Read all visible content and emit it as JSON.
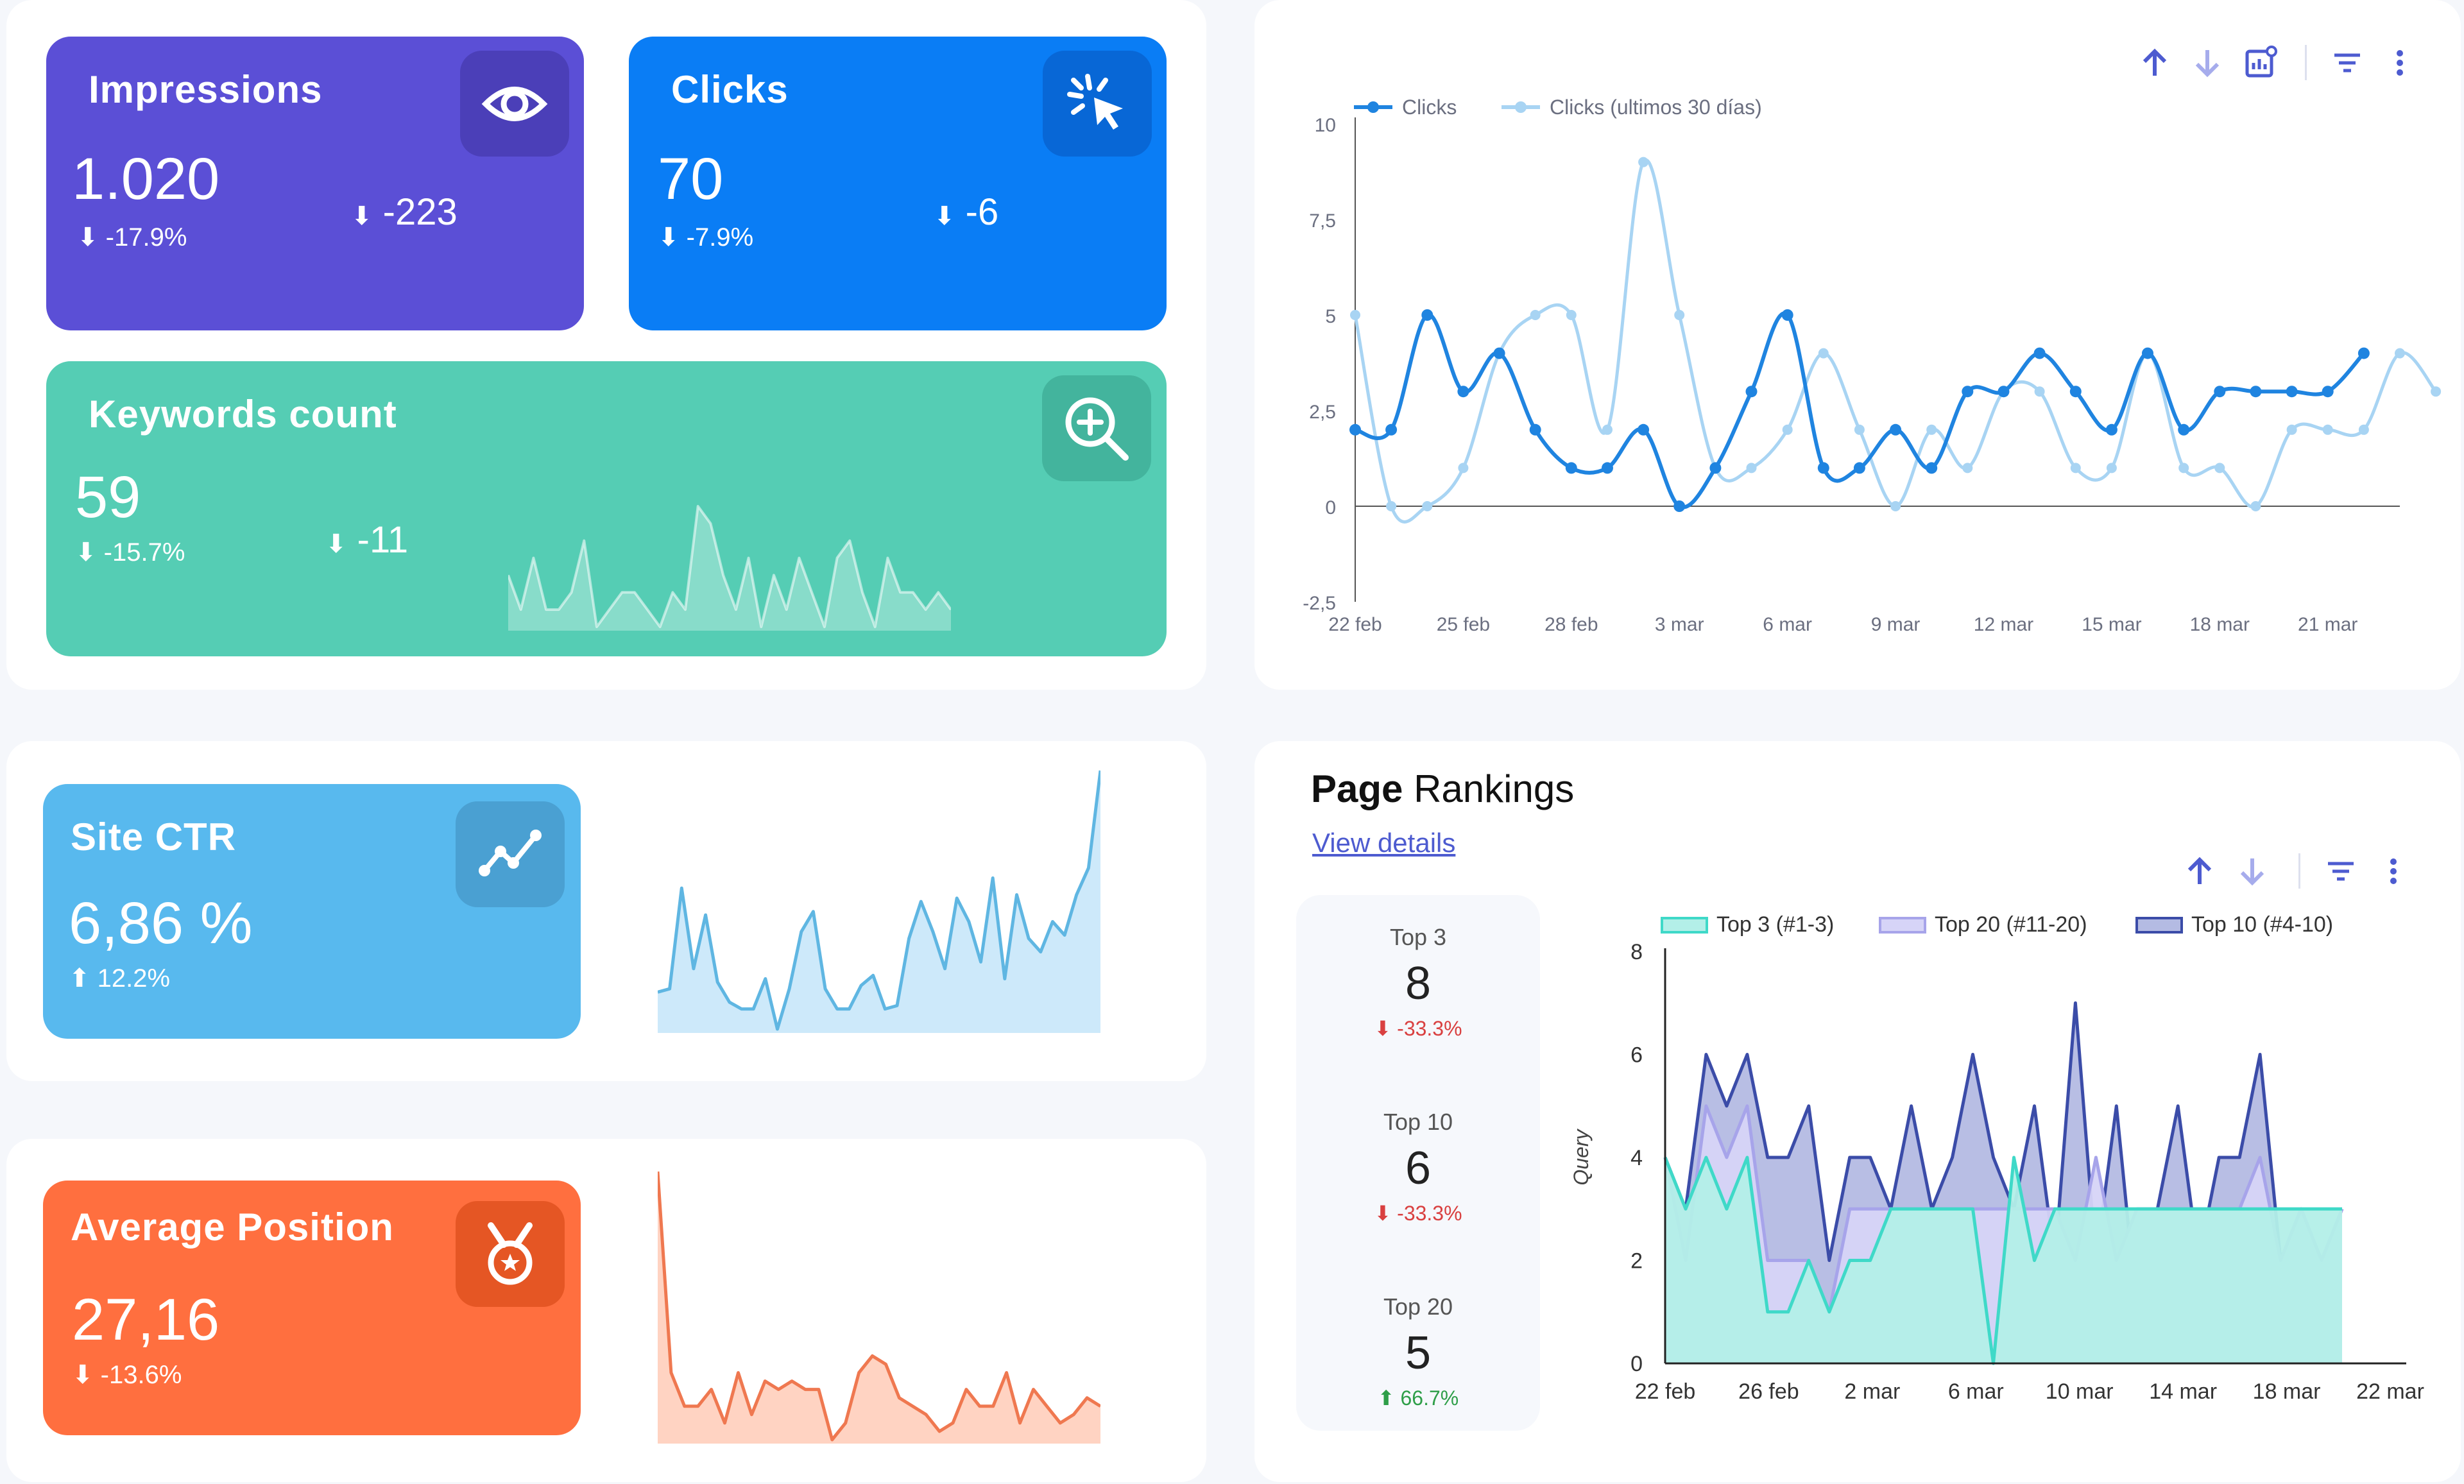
{
  "colors": {
    "impressions": "#5b4fd6",
    "clicks": "#0a7df5",
    "keywords": "#55cdb4",
    "ctr": "#58b9ee",
    "position": "#ff6f3f",
    "line_dark": "#1f84e0",
    "line_light": "#a8d4f3",
    "top3": "#3fd9c8",
    "top10": "#3b4ca8",
    "top20": "#a7a4ea",
    "neg": "#d94040",
    "pos": "#2e9e48"
  },
  "impressions": {
    "title": "Impressions",
    "value": "1.020",
    "pct": "-17.9%",
    "delta": "-223",
    "icon": "eye-icon"
  },
  "clicks": {
    "title": "Clicks",
    "value": "70",
    "pct": "-7.9%",
    "delta": "-6",
    "icon": "cursor-click-icon"
  },
  "keywords": {
    "title": "Keywords count",
    "value": "59",
    "pct": "-15.7%",
    "delta": "-11",
    "icon": "zoom-in-icon",
    "sparkline": [
      5,
      3,
      6,
      3,
      3,
      4,
      7,
      2,
      3,
      4,
      4,
      3,
      2,
      4,
      3,
      9,
      8,
      5,
      3,
      6,
      2,
      5,
      3,
      6,
      4,
      2,
      6,
      7,
      4,
      2,
      6,
      4,
      4,
      3,
      4,
      3
    ]
  },
  "ctr": {
    "title": "Site CTR",
    "value": "6,86 %",
    "pct": "12.2%",
    "icon": "trend-line-icon",
    "sparkline": [
      3.1,
      3.2,
      6.2,
      3.8,
      5.4,
      3.4,
      2.8,
      2.6,
      2.6,
      3.5,
      2.0,
      3.2,
      4.9,
      5.5,
      3.2,
      2.6,
      2.6,
      3.3,
      3.6,
      2.6,
      2.7,
      4.7,
      5.8,
      4.9,
      3.8,
      5.9,
      5.2,
      4.0,
      6.5,
      3.5,
      6.0,
      4.7,
      4.3,
      5.2,
      4.8,
      6.0,
      6.8,
      9.7
    ]
  },
  "position": {
    "title": "Average Position",
    "value": "27,16",
    "pct": "-13.6%",
    "icon": "medal-icon",
    "sparkline": [
      52,
      28,
      24,
      24,
      26,
      22,
      28,
      23,
      27,
      26,
      27,
      26,
      26,
      20,
      22,
      28,
      30,
      29,
      25,
      24,
      23,
      21,
      22,
      26,
      24,
      24,
      28,
      22,
      26,
      24,
      22,
      23,
      25,
      24
    ]
  },
  "clicks_chart": {
    "type": "line",
    "legend": [
      "Clicks",
      "Clicks (ultimos 30 días)"
    ],
    "xticks": [
      "22 feb",
      "25 feb",
      "28 feb",
      "3 mar",
      "6 mar",
      "9 mar",
      "12 mar",
      "15 mar",
      "18 mar",
      "21 mar"
    ],
    "yticks": [
      "10",
      "7,5",
      "5",
      "2,5",
      "0",
      "-2,5"
    ],
    "ylim": [
      -2.5,
      10
    ],
    "series": [
      {
        "name": "Clicks",
        "values": [
          2,
          2,
          5,
          3,
          4,
          2,
          1,
          1,
          2,
          0,
          1,
          3,
          5,
          1,
          1,
          2,
          1,
          3,
          3,
          4,
          3,
          2,
          4,
          2,
          3,
          3,
          3,
          3,
          4
        ]
      },
      {
        "name": "Clicks (ultimos 30 días)",
        "values": [
          5,
          0,
          0,
          1,
          4,
          5,
          5,
          2,
          9,
          5,
          1,
          1,
          2,
          4,
          2,
          0,
          2,
          1,
          3,
          3,
          1,
          1,
          4,
          1,
          1,
          0,
          2,
          2,
          2,
          4,
          3
        ]
      }
    ]
  },
  "rankings": {
    "title_bold": "Page",
    "title_rest": " Rankings",
    "link": "View details",
    "kpis": [
      {
        "label": "Top 3",
        "value": "8",
        "change": "-33.3%",
        "dir": "down"
      },
      {
        "label": "Top 10",
        "value": "6",
        "change": "-33.3%",
        "dir": "down"
      },
      {
        "label": "Top 20",
        "value": "5",
        "change": "66.7%",
        "dir": "up"
      }
    ],
    "chart_data": {
      "type": "area",
      "legend": [
        "Top 3 (#1-3)",
        "Top 20 (#11-20)",
        "Top 10 (#4-10)"
      ],
      "ylabel": "Query",
      "xticks": [
        "22 feb",
        "26 feb",
        "2 mar",
        "6 mar",
        "10 mar",
        "14 mar",
        "18 mar",
        "22 mar"
      ],
      "yticks": [
        "8",
        "6",
        "4",
        "2",
        "0"
      ],
      "ylim": [
        0,
        8
      ],
      "series": [
        {
          "name": "Top 3 (#1-3)",
          "values": [
            4,
            3,
            4,
            3,
            4,
            1,
            1,
            2,
            1,
            2,
            2,
            3,
            3,
            3,
            3,
            3,
            0,
            4,
            2,
            3,
            3,
            3,
            3,
            3,
            3,
            3,
            3,
            3,
            3,
            3,
            3,
            3,
            3,
            3
          ]
        },
        {
          "name": "Top 20 (#11-20)",
          "values": [
            4,
            2,
            5,
            4,
            5,
            2,
            2,
            2,
            1,
            3,
            3,
            3,
            3,
            3,
            3,
            3,
            3,
            3,
            3,
            3,
            2,
            4,
            2,
            3,
            3,
            3,
            3,
            3,
            3,
            4,
            2,
            3,
            2,
            3
          ]
        },
        {
          "name": "Top 10 (#4-10)",
          "values": [
            4,
            3,
            6,
            5,
            6,
            4,
            4,
            5,
            2,
            4,
            4,
            3,
            5,
            3,
            4,
            6,
            4,
            3,
            5,
            2,
            7,
            2,
            5,
            1,
            3,
            5,
            2,
            4,
            4,
            6,
            2,
            3,
            2,
            3
          ]
        }
      ]
    }
  },
  "toolbar": {
    "up": "sort-ascending-icon",
    "down": "sort-descending-icon",
    "chart": "chart-settings-icon",
    "filter": "filter-icon",
    "more": "more-vert-icon"
  }
}
